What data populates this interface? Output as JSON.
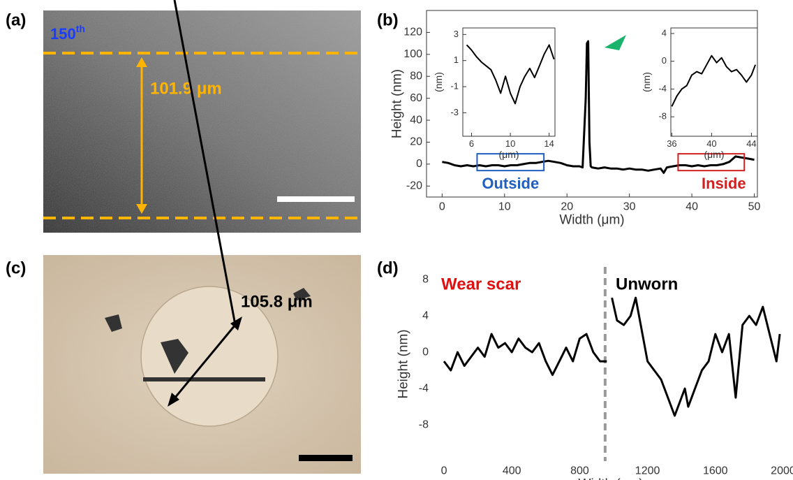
{
  "images": [
    {
      "panel": "(a)",
      "label": "150",
      "label_sup": "th",
      "measurement": "101.9 μm"
    },
    {
      "panel": "(c)",
      "measurement": "105.8 μm"
    }
  ],
  "chart_data": [
    {
      "type": "line",
      "panel": "(b)",
      "xlabel": "Width (μm)",
      "ylabel": "Height (nm)",
      "xlim": [
        -2.5,
        50.5
      ],
      "ylim": [
        -30,
        140
      ],
      "xticks": [
        0,
        10,
        20,
        30,
        40,
        50
      ],
      "yticks": [
        -20,
        0,
        20,
        40,
        60,
        80,
        100,
        120
      ],
      "box": true,
      "x": [
        0,
        1,
        2,
        3,
        4,
        5,
        6,
        7,
        8,
        9,
        10,
        11,
        12,
        13,
        14,
        15,
        16,
        17,
        18,
        19,
        20,
        21,
        22,
        22.5,
        23,
        23.2,
        23.4,
        23.6,
        23.8,
        24,
        25,
        26,
        27,
        28,
        29,
        30,
        31,
        32,
        33,
        34,
        35,
        35.5,
        36,
        37,
        38,
        39,
        40,
        41,
        42,
        43,
        44,
        45,
        46,
        47,
        48,
        49,
        50
      ],
      "series": [
        {
          "color": "#000000",
          "values": [
            2,
            1,
            -1,
            -2,
            -1,
            -2,
            -1,
            -2,
            -1,
            -1,
            -2,
            -1,
            -1,
            0,
            1,
            1,
            2,
            3,
            2,
            1,
            -1,
            -2,
            -2,
            -3,
            60,
            110,
            112,
            20,
            -2,
            -3,
            -4,
            -3,
            -4,
            -4,
            -5,
            -4,
            -5,
            -5,
            -6,
            -5,
            -4,
            -8,
            -3,
            -2,
            -1,
            -1,
            -2,
            -1,
            -2,
            -1,
            -1,
            0,
            2,
            7,
            6,
            5,
            4
          ]
        }
      ],
      "regions": [
        {
          "label": "Outside",
          "color": "#1f5fbf",
          "x": [
            5.6,
            16.3
          ],
          "y": [
            -5.9,
            9.4
          ]
        },
        {
          "label": "Inside",
          "color": "#d02020",
          "x": [
            37.8,
            48.4
          ],
          "y": [
            -5.9,
            9.4
          ]
        }
      ]
    },
    {
      "type": "line",
      "xlabel": "(μm)",
      "ylabel": "(nm)",
      "xlim": [
        5.1,
        14.6
      ],
      "ylim": [
        -4.8,
        3.5
      ],
      "xticks": [
        6,
        10,
        14
      ],
      "yticks": [
        -3,
        -1,
        1,
        3
      ],
      "box": true,
      "x": [
        5.5,
        6,
        6.5,
        7,
        7.5,
        8,
        8.5,
        9,
        9.5,
        10,
        10.5,
        11,
        11.5,
        12,
        12.5,
        13,
        13.5,
        14,
        14.5
      ],
      "series": [
        {
          "color": "#000000",
          "values": [
            2.2,
            1.8,
            1.3,
            0.9,
            0.6,
            0.3,
            -0.5,
            -1.5,
            -0.2,
            -1.5,
            -2.3,
            -1.0,
            -0.2,
            0.4,
            -0.3,
            0.6,
            1.5,
            2.2,
            1.1
          ]
        }
      ]
    },
    {
      "type": "line",
      "xlabel": "(μm)",
      "ylabel": "(nm)",
      "xlim": [
        35.9,
        44.6
      ],
      "ylim": [
        -10.8,
        4.8
      ],
      "xticks": [
        36,
        40,
        44
      ],
      "yticks": [
        -8,
        -4,
        0,
        4
      ],
      "box": true,
      "x": [
        36,
        36.5,
        37,
        37.5,
        38,
        38.5,
        39,
        39.5,
        40,
        40.5,
        41,
        41.5,
        42,
        42.5,
        43,
        43.5,
        44,
        44.4
      ],
      "series": [
        {
          "color": "#000000",
          "values": [
            -6.5,
            -5,
            -4,
            -3.5,
            -2,
            -1.5,
            -1.8,
            -0.5,
            0.8,
            -0.2,
            0.5,
            -0.8,
            -1.5,
            -1.2,
            -2,
            -3,
            -2,
            -0.5
          ]
        }
      ]
    },
    {
      "type": "line",
      "panel": "(d)",
      "xlabel": "Width (nm)",
      "ylabel": "Height (nm)",
      "xlim": [
        -66,
        2033
      ],
      "ylim": [
        -12,
        9.4
      ],
      "xticks": [
        0,
        400,
        800,
        1200,
        1600,
        2000
      ],
      "yticks": [
        -8,
        -4,
        0,
        4,
        8
      ],
      "box": false,
      "x": [
        0,
        40,
        80,
        120,
        160,
        200,
        240,
        280,
        320,
        360,
        400,
        440,
        480,
        520,
        560,
        600,
        640,
        680,
        720,
        760,
        800,
        840,
        880,
        920,
        960,
        975,
        990,
        1020,
        1060,
        1100,
        1130,
        1160,
        1200,
        1240,
        1280,
        1320,
        1360,
        1400,
        1420,
        1440,
        1480,
        1520,
        1560,
        1600,
        1640,
        1680,
        1720,
        1760,
        1800,
        1840,
        1880,
        1920,
        1960,
        1980
      ],
      "series": [
        {
          "color": "#000000",
          "values": [
            -1,
            -2,
            0,
            -1.5,
            -0.5,
            0.5,
            -0.5,
            2,
            0.5,
            1,
            0,
            1.5,
            0.5,
            0,
            1,
            -1,
            -2.5,
            -1,
            0.5,
            -1,
            1.5,
            2,
            0,
            -1,
            -1,
            null,
            6,
            3.5,
            3,
            4,
            6,
            3,
            -1,
            -2,
            -3,
            -5,
            -7,
            -5,
            -4,
            -6,
            -4,
            -2,
            -1,
            2,
            0,
            2,
            -5,
            3,
            4,
            3,
            5,
            2,
            -1,
            2
          ]
        }
      ],
      "divider_x": 950,
      "annotations": [
        {
          "text": "Wear scar",
          "color": "#e01010"
        },
        {
          "text": "Unworn",
          "color": "#000000"
        }
      ]
    }
  ]
}
